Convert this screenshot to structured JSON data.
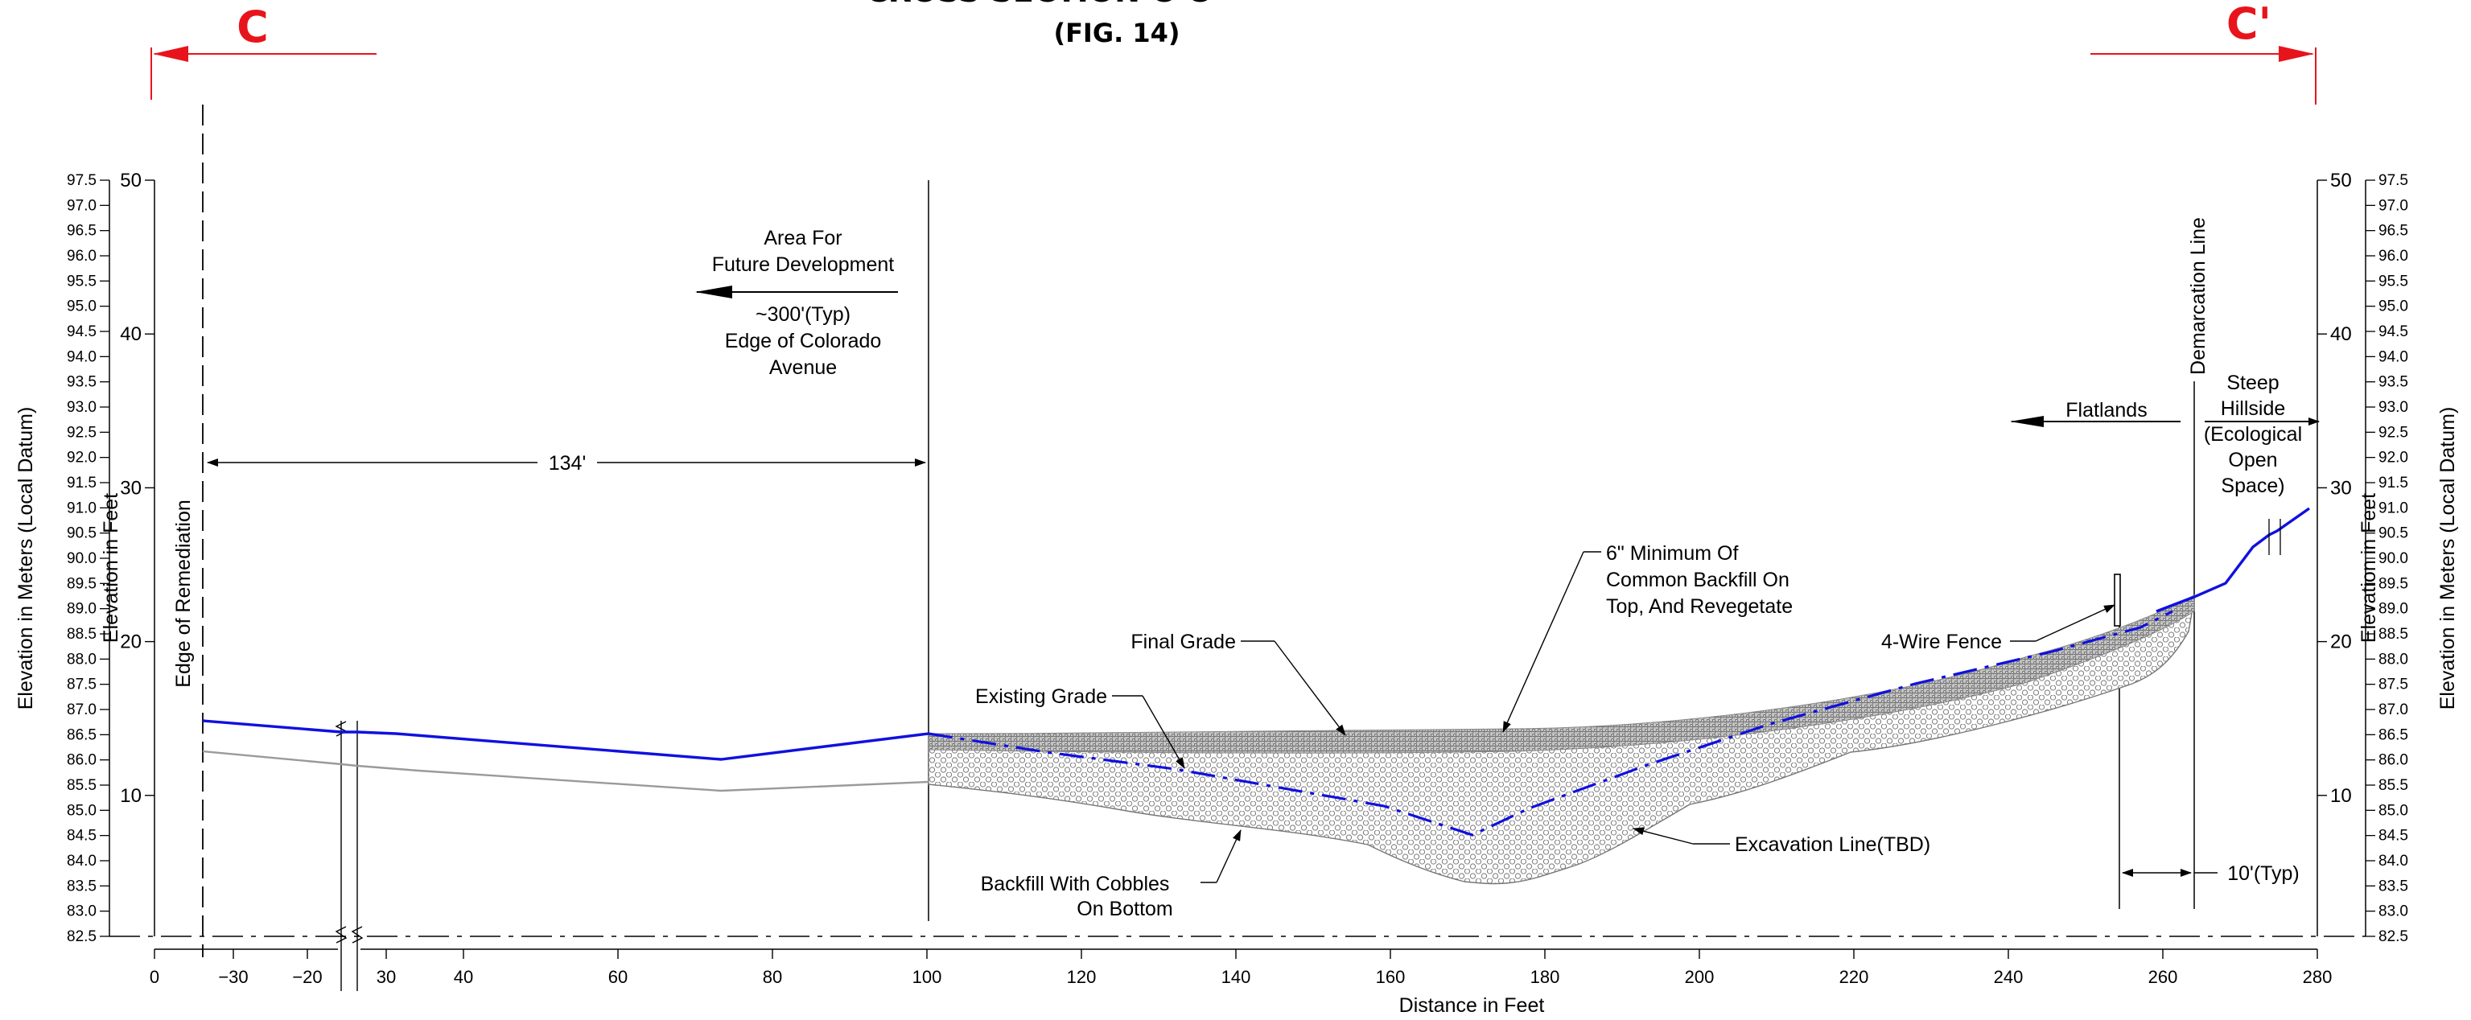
{
  "figure": {
    "title": "CROSS SECTION C-C'",
    "subtitle": "(FIG. 14)",
    "section_start": "C",
    "section_end": "C'"
  },
  "axes": {
    "x_label": "Distance in Feet",
    "x_ticks": [
      "0",
      "−30",
      "−20",
      "30",
      "40",
      "60",
      "80",
      "100",
      "120",
      "140",
      "160",
      "180",
      "200",
      "220",
      "240",
      "260",
      "280"
    ],
    "y_feet_label": "Elevation in Feet",
    "y_feet_ticks": [
      "10",
      "20",
      "30",
      "40",
      "50"
    ],
    "y_meters_label": "Elevation in Meters (Local Datum)",
    "y_meters_ticks": [
      "82.5",
      "83.0",
      "83.5",
      "84.0",
      "84.5",
      "85.0",
      "85.5",
      "86.0",
      "86.5",
      "87.0",
      "87.5",
      "88.0",
      "88.5",
      "89.0",
      "89.5",
      "90.0",
      "90.5",
      "91.0",
      "91.5",
      "92.0",
      "92.5",
      "93.0",
      "93.5",
      "94.0",
      "94.5",
      "95.0",
      "95.5",
      "96.0",
      "96.5",
      "97.0",
      "97.5"
    ]
  },
  "annotations": {
    "edge_of_remediation": "Edge of Remediation",
    "dimension_134": "134'",
    "area_future_1": "Area For",
    "area_future_2": "Future Development",
    "colorado_1": "~300'(Typ)",
    "colorado_2": "Edge of Colorado",
    "colorado_3": "Avenue",
    "demarcation": "Demarcation Line",
    "flatlands": "Flatlands",
    "steep_1": "Steep",
    "steep_2": "Hillside",
    "steep_3": "(Ecological",
    "steep_4": "Open",
    "steep_5": "Space)",
    "backfill_top_1": "6\" Minimum Of",
    "backfill_top_2": "Common Backfill On",
    "backfill_top_3": "Top, And Revegetate",
    "final_grade": "Final Grade",
    "existing_grade": "Existing Grade",
    "fence": "4-Wire Fence",
    "cobbles_1": "Backfill With Cobbles",
    "cobbles_2": "On Bottom",
    "excavation": "Excavation Line(TBD)",
    "typ10": "10'(Typ)"
  },
  "colors": {
    "final_grade": "#1010e0",
    "existing_grade": "#9a9a9a",
    "section_marker": "#e8141c",
    "excavation_line": "#1010e0",
    "fill_hatch": "#808080"
  }
}
